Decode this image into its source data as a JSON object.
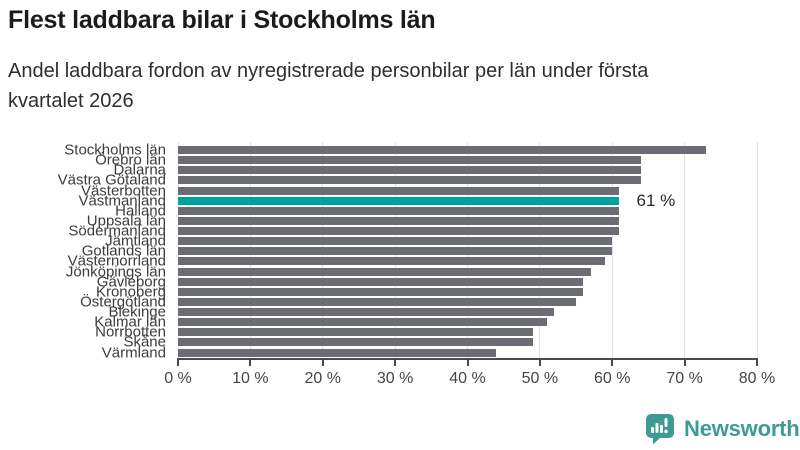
{
  "header": {
    "title": "Flest laddbara bilar i Stockholms län",
    "subtitle": "Andel laddbara fordon av nyregistrerade personbilar per län under första kvartalet 2026",
    "subtitle_lines": [
      "Andel laddbara fordon av nyregistrerade personbilar per län under första",
      "kvartalet 2026"
    ]
  },
  "chart_data": {
    "type": "bar",
    "orientation": "horizontal",
    "title": "Flest laddbara bilar i Stockholms län",
    "subtitle": "Andel laddbara fordon av nyregistrerade personbilar per län under första kvartalet 2026",
    "unit": "%",
    "xlim": [
      0,
      80
    ],
    "grid": true,
    "legend": "none",
    "categories": [
      "Stockholms län",
      "Örebro län",
      "Dalarna",
      "Västra Götaland",
      "Västerbotten",
      "Västmanland",
      "Halland",
      "Uppsala län",
      "Södermanland",
      "Jämtland",
      "Gotlands län",
      "Västernorrland",
      "Jönköpings län",
      "Gävleborg",
      "Kronoberg",
      "Östergötland",
      "Blekinge",
      "Kalmar län",
      "Norrbotten",
      "Skåne",
      "Värmland"
    ],
    "values": [
      73,
      64,
      64,
      64,
      61,
      61,
      61,
      61,
      61,
      60,
      60,
      59,
      57,
      56,
      56,
      55,
      52,
      51,
      49,
      49,
      44
    ],
    "highlight": {
      "category": "Västmanland",
      "label": "61 %"
    },
    "x_ticks": [
      {
        "value": 0,
        "label": "0 %"
      },
      {
        "value": 10,
        "label": "10 %"
      },
      {
        "value": 20,
        "label": "20 %"
      },
      {
        "value": 30,
        "label": "30 %"
      },
      {
        "value": 40,
        "label": "40 %"
      },
      {
        "value": 50,
        "label": "50 %"
      },
      {
        "value": 60,
        "label": "60 %"
      },
      {
        "value": 70,
        "label": "70 %"
      },
      {
        "value": 80,
        "label": "80 %"
      }
    ],
    "colors": {
      "bar": "#6c6c74",
      "highlight": "#00a29b",
      "grid": "#e1e1e1",
      "axis": "#4a4a4a"
    }
  },
  "footer": {
    "brand": "Newsworthy",
    "logo_icon": "bar-chart-speech-bubble-icon",
    "brand_color": "#3e9b94"
  }
}
